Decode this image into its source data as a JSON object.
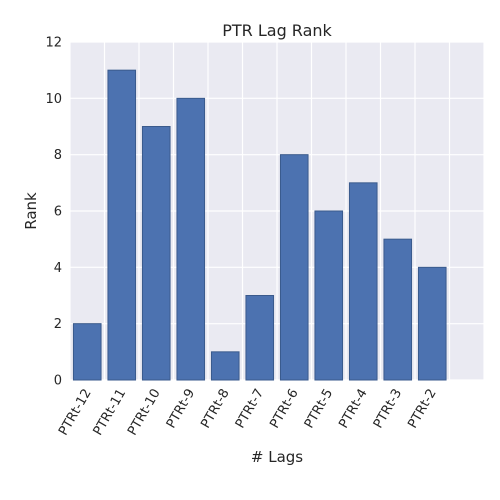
{
  "chart_data": {
    "type": "bar",
    "title": "PTR Lag Rank",
    "xlabel": "# Lags",
    "ylabel": "Rank",
    "categories": [
      "PTRt-12",
      "PTRt-11",
      "PTRt-10",
      "PTRt-9",
      "PTRt-8",
      "PTRt-7",
      "PTRt-6",
      "PTRt-5",
      "PTRt-4",
      "PTRt-3",
      "PTRt-2"
    ],
    "values": [
      2,
      11,
      9,
      10,
      1,
      3,
      8,
      6,
      7,
      5,
      4
    ],
    "ylim": [
      0,
      12
    ],
    "yticks": [
      "0",
      "2",
      "4",
      "6",
      "8",
      "10",
      "12"
    ],
    "grid": true,
    "colors": {
      "bar_fill": "#4c72b0",
      "bar_stroke": "#3a5a8c",
      "plot_background": "#eaeaf2",
      "grid": "#ffffff"
    }
  }
}
